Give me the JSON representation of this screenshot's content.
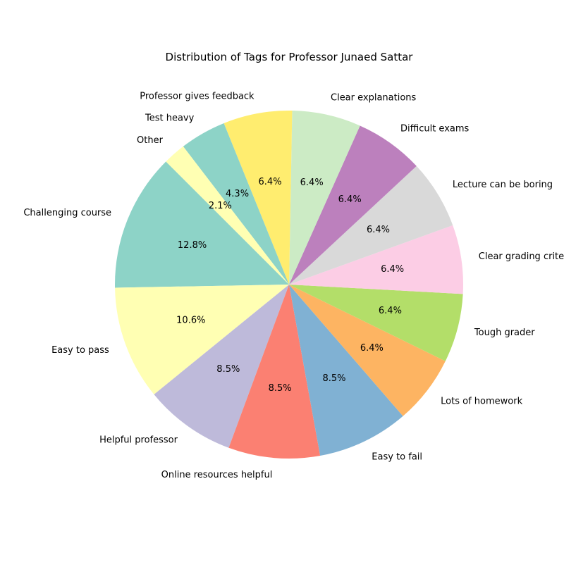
{
  "chart_data": {
    "type": "pie",
    "title": "Distribution of Tags for Professor Junaed Sattar",
    "start_angle_deg": 135,
    "direction": "counterclockwise",
    "slices": [
      {
        "label": "Challenging course",
        "percent": 12.8,
        "pct_label": "12.8%",
        "color": "#8dd3c7"
      },
      {
        "label": "Easy to pass",
        "percent": 10.6,
        "pct_label": "10.6%",
        "color": "#ffffb3"
      },
      {
        "label": "Helpful professor",
        "percent": 8.5,
        "pct_label": "8.5%",
        "color": "#bebada"
      },
      {
        "label": "Online resources helpful",
        "percent": 8.5,
        "pct_label": "8.5%",
        "color": "#fb8072"
      },
      {
        "label": "Easy to fail",
        "percent": 8.5,
        "pct_label": "8.5%",
        "color": "#80b1d3"
      },
      {
        "label": "Lots of homework",
        "percent": 6.4,
        "pct_label": "6.4%",
        "color": "#fdb462"
      },
      {
        "label": "Tough grader",
        "percent": 6.4,
        "pct_label": "6.4%",
        "color": "#b3de69"
      },
      {
        "label": "Clear grading criteria",
        "percent": 6.4,
        "pct_label": "6.4%",
        "color": "#fccde5"
      },
      {
        "label": "Lecture can be boring",
        "percent": 6.4,
        "pct_label": "6.4%",
        "color": "#d9d9d9"
      },
      {
        "label": "Difficult exams",
        "percent": 6.4,
        "pct_label": "6.4%",
        "color": "#bc80bd"
      },
      {
        "label": "Clear explanations",
        "percent": 6.4,
        "pct_label": "6.4%",
        "color": "#ccebc5"
      },
      {
        "label": "Professor gives feedback",
        "percent": 6.4,
        "pct_label": "6.4%",
        "color": "#ffed6f"
      },
      {
        "label": "Test heavy",
        "percent": 4.3,
        "pct_label": "4.3%",
        "color": "#8dd3c7"
      },
      {
        "label": "Other",
        "percent": 2.1,
        "pct_label": "2.1%",
        "color": "#ffffb3"
      }
    ]
  }
}
